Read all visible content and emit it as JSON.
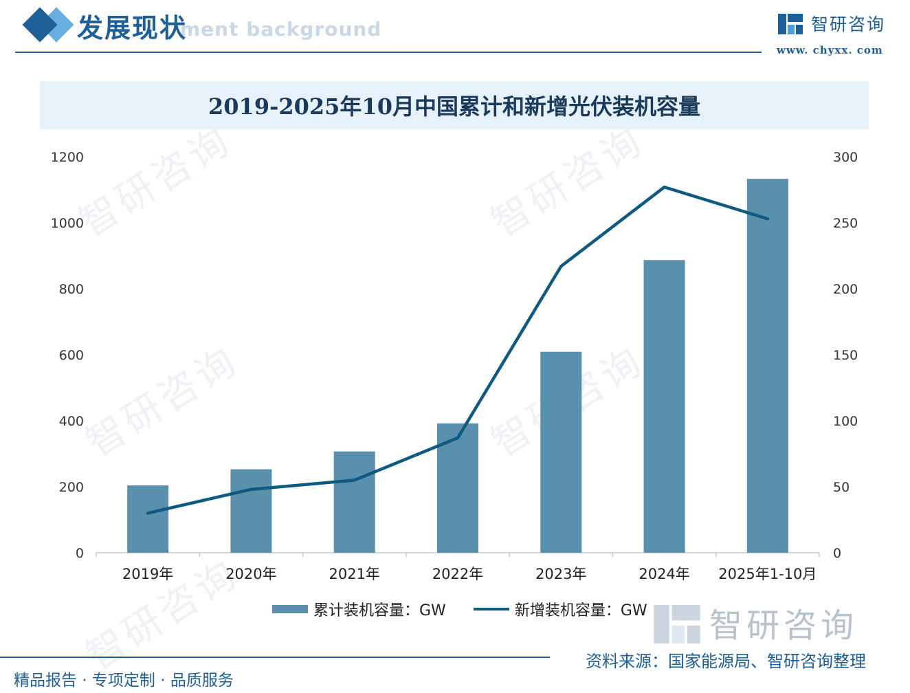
{
  "header": {
    "section_title": "发展现状",
    "section_subtitle_en": "ment background",
    "brand_name": "智研咨询",
    "brand_url": "www. chyxx. com"
  },
  "chart_data": {
    "type": "bar",
    "title": "2019-2025年10月中国累计和新增光伏装机容量",
    "categories": [
      "2019年",
      "2020年",
      "2021年",
      "2022年",
      "2023年",
      "2024年",
      "2025年1-10月"
    ],
    "series": [
      {
        "name": "累计装机容量：GW",
        "type": "bar",
        "axis": "left",
        "color": "#5b8fae",
        "values": [
          204,
          253,
          307,
          392,
          609,
          887,
          1133
        ]
      },
      {
        "name": "新增装机容量：GW",
        "type": "line",
        "axis": "right",
        "color": "#0f5a80",
        "values": [
          30,
          48,
          55,
          87,
          217,
          277,
          253
        ]
      }
    ],
    "y_left": {
      "lim": [
        0,
        1200
      ],
      "ticks": [
        "0",
        "200",
        "400",
        "600",
        "800",
        "1000",
        "1200"
      ]
    },
    "y_right": {
      "lim": [
        0,
        300
      ],
      "ticks": [
        "0",
        "50",
        "100",
        "150",
        "200",
        "250",
        "300"
      ]
    },
    "grid": false,
    "legend_position": "bottom"
  },
  "watermark": {
    "text": "智研咨询"
  },
  "source": "资料来源：国家能源局、智研咨询整理",
  "footer": {
    "slogan": "精品报告 · 专项定制 · 品质服务"
  }
}
